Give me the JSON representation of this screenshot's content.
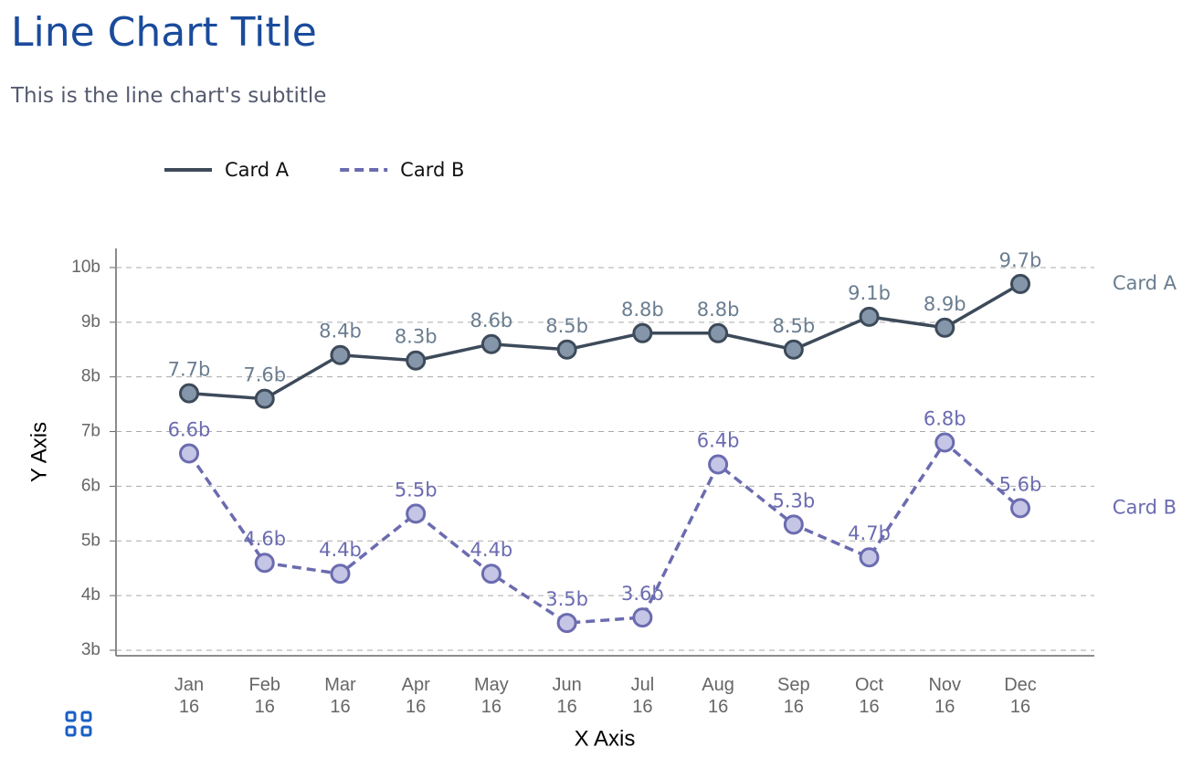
{
  "chart_data": {
    "type": "line",
    "title": "Line Chart Title",
    "subtitle": "This is the line chart's subtitle",
    "x_label": "X Axis",
    "y_label": "Y Axis",
    "categories": [
      "Jan 16",
      "Feb 16",
      "Mar 16",
      "Apr 16",
      "May 16",
      "Jun 16",
      "Jul 16",
      "Aug 16",
      "Sep 16",
      "Oct 16",
      "Nov 16",
      "Dec 16"
    ],
    "series": [
      {
        "name": "Card A",
        "color": "#3d4a5a",
        "marker_color": "#8696aa",
        "label_color": "#6a7d90",
        "line_style": "solid",
        "values": [
          7.7,
          7.6,
          8.4,
          8.3,
          8.6,
          8.5,
          8.8,
          8.8,
          8.5,
          9.1,
          8.9,
          9.7
        ],
        "value_labels": [
          "7.7b",
          "7.6b",
          "8.4b",
          "8.3b",
          "8.6b",
          "8.5b",
          "8.8b",
          "8.8b",
          "8.5b",
          "9.1b",
          "8.9b",
          "9.7b"
        ]
      },
      {
        "name": "Card B",
        "color": "#6b6bb0",
        "marker_color": "#c5c5e6",
        "label_color": "#6b6bb0",
        "line_style": "dashed",
        "values": [
          6.6,
          4.6,
          4.4,
          5.5,
          4.4,
          3.5,
          3.6,
          6.4,
          5.3,
          4.7,
          6.8,
          5.6
        ],
        "value_labels": [
          "6.6b",
          "4.6b",
          "4.4b",
          "5.5b",
          "4.4b",
          "3.5b",
          "3.6b",
          "6.4b",
          "5.3b",
          "4.7b",
          "6.8b",
          "5.6b"
        ]
      }
    ],
    "ylim": [
      2.9,
      10.35
    ],
    "yticks": [
      {
        "value": 3,
        "label": "3b"
      },
      {
        "value": 4,
        "label": "4b"
      },
      {
        "value": 5,
        "label": "5b"
      },
      {
        "value": 6,
        "label": "6b"
      },
      {
        "value": 7,
        "label": "7b"
      },
      {
        "value": 8,
        "label": "8b"
      },
      {
        "value": 9,
        "label": "9b"
      },
      {
        "value": 10,
        "label": "10b"
      }
    ],
    "grid": true,
    "legend": "top-left"
  }
}
